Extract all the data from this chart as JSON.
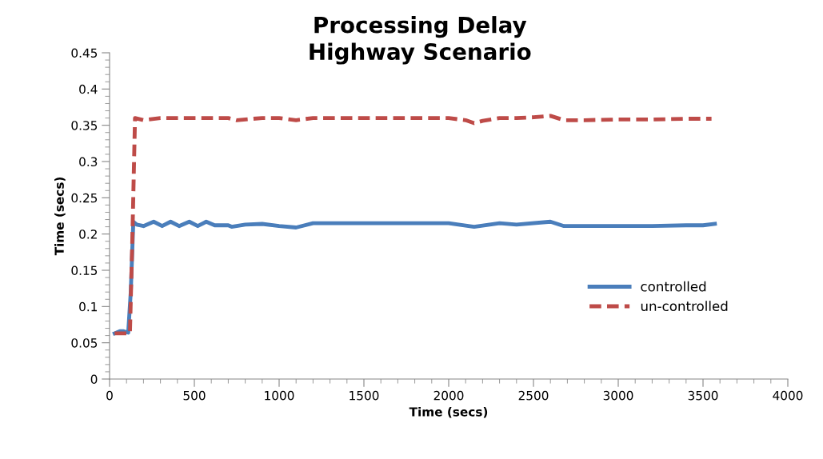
{
  "chart_data": {
    "type": "line",
    "title": "Processing Delay\nHighway Scenario",
    "xlabel": "Time (secs)",
    "ylabel": "Time (secs)",
    "xlim": [
      0,
      4000
    ],
    "xticks": [
      0,
      500,
      1000,
      1500,
      2000,
      2500,
      3000,
      3500,
      4000
    ],
    "ylim": [
      0,
      0.45
    ],
    "yticks": [
      0,
      0.05,
      0.1,
      0.15,
      0.2,
      0.25,
      0.3,
      0.35,
      0.4,
      0.45
    ],
    "grid": false,
    "legend": "right",
    "marker": "none",
    "series": [
      {
        "name": "controlled",
        "color": "#4a7ebb",
        "line_style": "solid",
        "x": [
          30,
          60,
          80,
          110,
          125,
          140,
          160,
          200,
          260,
          310,
          360,
          410,
          470,
          520,
          570,
          620,
          700,
          720,
          800,
          900,
          1000,
          1100,
          1200,
          1400,
          1600,
          1800,
          2000,
          2150,
          2300,
          2400,
          2600,
          2680,
          2800,
          3000,
          3200,
          3400,
          3500,
          3570
        ],
        "values": [
          0.063,
          0.066,
          0.066,
          0.064,
          0.12,
          0.217,
          0.213,
          0.211,
          0.217,
          0.211,
          0.217,
          0.211,
          0.217,
          0.211,
          0.217,
          0.212,
          0.212,
          0.21,
          0.213,
          0.214,
          0.211,
          0.209,
          0.215,
          0.215,
          0.215,
          0.215,
          0.215,
          0.21,
          0.215,
          0.213,
          0.217,
          0.211,
          0.211,
          0.211,
          0.211,
          0.212,
          0.212,
          0.214
        ]
      },
      {
        "name": "un-controlled",
        "color": "#be4b48",
        "line_style": "dashed",
        "x": [
          30,
          60,
          90,
          120,
          135,
          150,
          200,
          300,
          500,
          700,
          750,
          900,
          1000,
          1100,
          1200,
          1400,
          1600,
          1800,
          2000,
          2100,
          2150,
          2200,
          2300,
          2400,
          2500,
          2600,
          2680,
          2800,
          3000,
          3200,
          3400,
          3550
        ],
        "values": [
          0.063,
          0.063,
          0.063,
          0.063,
          0.2,
          0.36,
          0.357,
          0.36,
          0.36,
          0.36,
          0.357,
          0.36,
          0.36,
          0.357,
          0.36,
          0.36,
          0.36,
          0.36,
          0.36,
          0.357,
          0.353,
          0.356,
          0.36,
          0.36,
          0.361,
          0.363,
          0.357,
          0.357,
          0.358,
          0.358,
          0.359,
          0.359
        ]
      }
    ]
  }
}
